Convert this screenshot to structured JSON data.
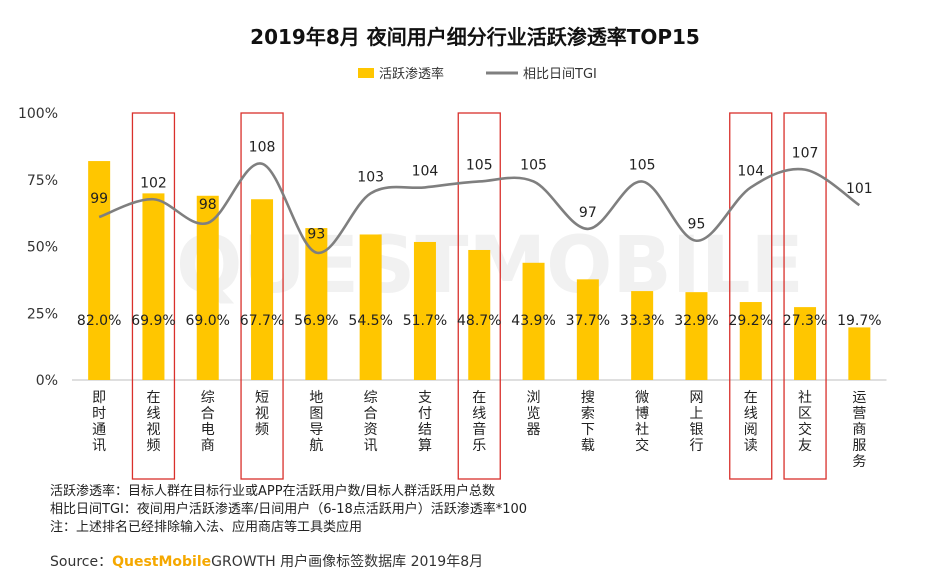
{
  "chart_data": {
    "type": "bar",
    "title": "2019年8月 夜间用户细分行业活跃渗透率TOP15",
    "legend": {
      "bar_label": "活跃渗透率",
      "line_label": "相比日间TGI",
      "placement": "top-center"
    },
    "categories": [
      "即时通讯",
      "在线视频",
      "综合电商",
      "短视频",
      "地图导航",
      "综合资讯",
      "支付结算",
      "在线音乐",
      "浏览器",
      "搜索下载",
      "微博社交",
      "网上银行",
      "在线阅读",
      "社区交友",
      "运营商服务"
    ],
    "series": [
      {
        "name": "活跃渗透率",
        "type": "bar",
        "values": [
          82.0,
          69.9,
          69.0,
          67.7,
          56.9,
          54.5,
          51.7,
          48.7,
          43.9,
          37.7,
          33.3,
          32.9,
          29.2,
          27.3,
          19.7
        ],
        "labels": [
          "82.0%",
          "69.9%",
          "69.0%",
          "67.7%",
          "56.9%",
          "54.5%",
          "51.7%",
          "48.7%",
          "43.9%",
          "37.7%",
          "33.3%",
          "32.9%",
          "29.2%",
          "27.3%",
          "19.7%"
        ],
        "color": "#FFC600"
      },
      {
        "name": "相比日间TGI",
        "type": "line",
        "values": [
          99,
          102,
          98,
          108,
          93,
          103,
          104,
          105,
          105,
          97,
          105,
          95,
          104,
          107,
          101
        ],
        "color": "#7F7F7F"
      }
    ],
    "highlighted_categories": [
      "在线视频",
      "短视频",
      "在线音乐",
      "在线阅读",
      "社区交友"
    ],
    "highlight_color": "#D9302B",
    "y_axis": {
      "ticks": [
        "0%",
        "25%",
        "50%",
        "75%",
        "100%"
      ],
      "ylim": [
        0,
        100
      ]
    },
    "grid": false
  },
  "notes": [
    "活跃渗透率：目标人群在目标行业或APP在活跃用户数/目标人群活跃用户总数",
    "相比日间TGI：夜间用户活跃渗透率/日间用户（6-18点活跃用户）活跃渗透率*100",
    "注：上述排名已经排除输入法、应用商店等工具类应用"
  ],
  "source": {
    "prefix": "Source：",
    "brand": "QuestMobile",
    "text": "GROWTH 用户画像标签数据库 2019年8月"
  },
  "watermark": "QUESTMOBILE"
}
